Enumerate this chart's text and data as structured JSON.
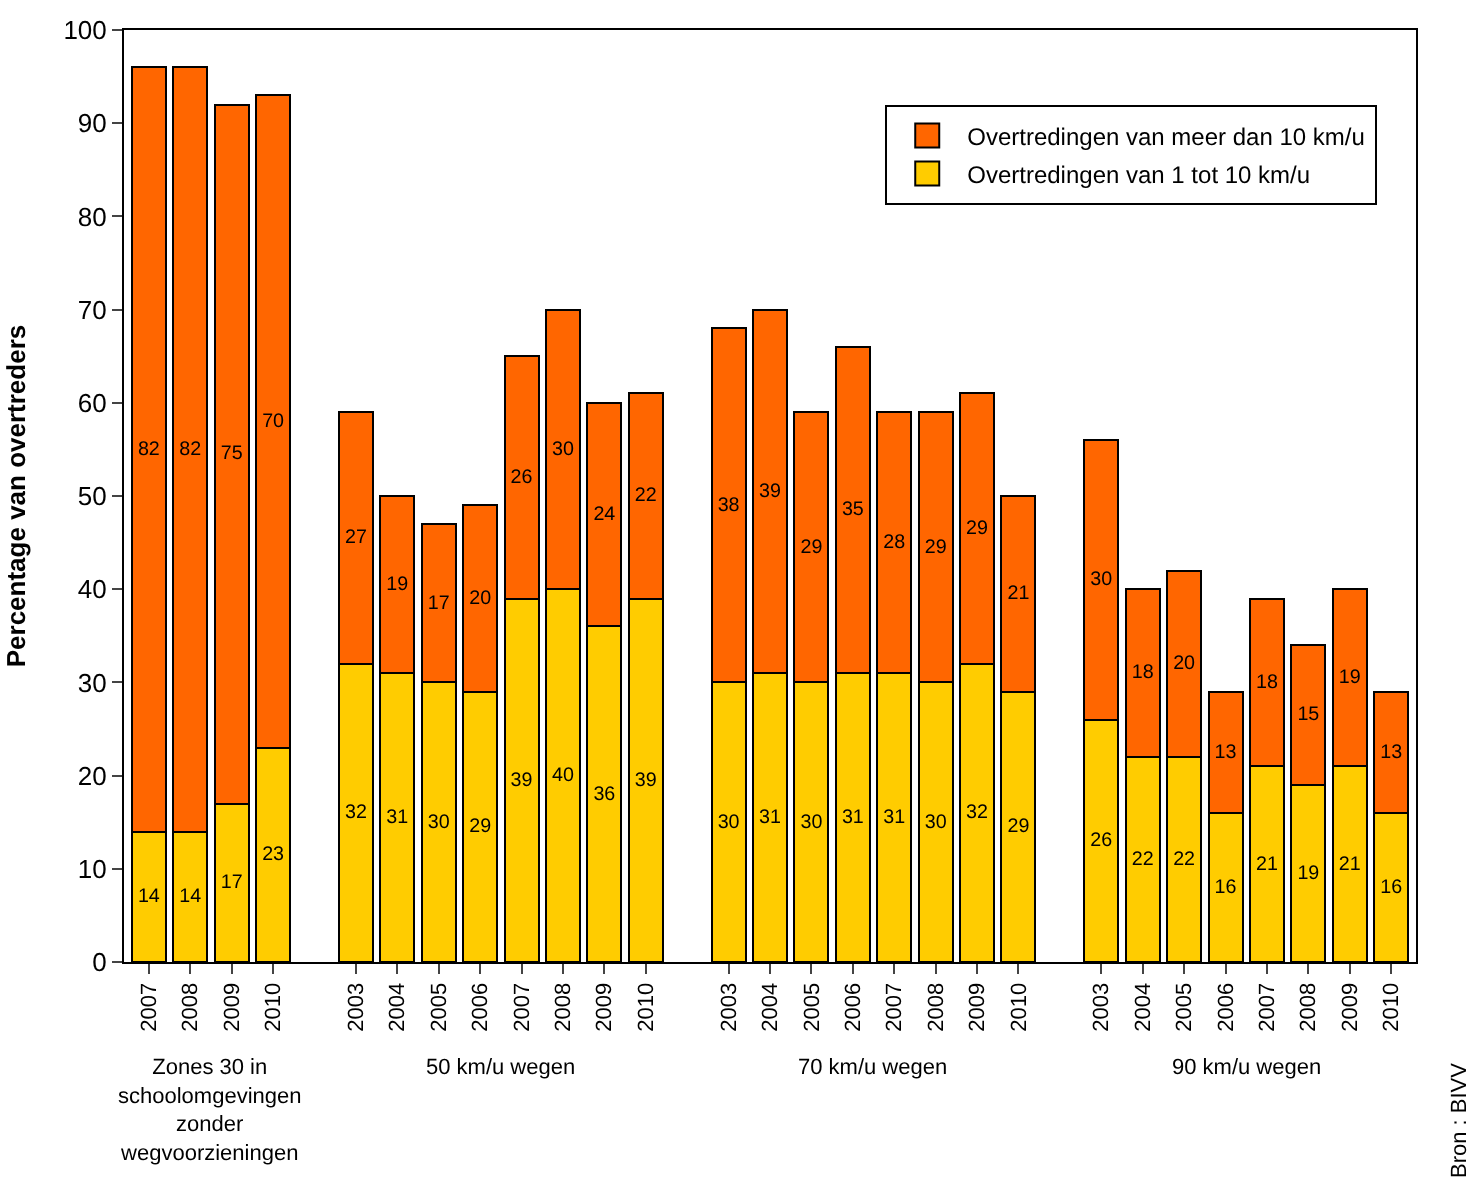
{
  "chart_data": {
    "type": "bar",
    "stacked": true,
    "ylabel": "Percentage van overtreders",
    "categories": [
      "2007",
      "2008",
      "2009",
      "2010",
      null,
      "2003",
      "2004",
      "2005",
      "2006",
      "2007",
      "2008",
      "2009",
      "2010",
      null,
      "2003",
      "2004",
      "2005",
      "2006",
      "2007",
      "2008",
      "2009",
      "2010",
      null,
      "2003",
      "2004",
      "2005",
      "2006",
      "2007",
      "2008",
      "2009",
      "2010"
    ],
    "series": [
      {
        "name": "Overtredingen van 1 tot 10 km/u",
        "color": "#ffcc00",
        "values": [
          14,
          14,
          17,
          23,
          null,
          32,
          31,
          30,
          29,
          39,
          40,
          36,
          39,
          null,
          30,
          31,
          30,
          31,
          31,
          30,
          32,
          29,
          null,
          26,
          22,
          22,
          16,
          21,
          19,
          21,
          16
        ]
      },
      {
        "name": "Overtredingen van meer dan 10 km/u",
        "color": "#ff6600",
        "values": [
          82,
          82,
          75,
          70,
          null,
          27,
          19,
          17,
          20,
          26,
          30,
          24,
          22,
          null,
          38,
          39,
          29,
          35,
          28,
          29,
          29,
          21,
          null,
          30,
          18,
          20,
          13,
          18,
          15,
          19,
          13
        ]
      }
    ],
    "data_labels": true,
    "ylim": [
      0,
      100
    ],
    "yticks": [
      0,
      10,
      20,
      30,
      40,
      50,
      60,
      70,
      80,
      90,
      100
    ],
    "grid": false,
    "legend": "top right",
    "annotations": [
      "Zones 30 in schoolomgevingen zonder wegvoorzieningen",
      "50 km/u wegen",
      "70 km/u wegen",
      "90 km/u wegen",
      "Bron : BIVV"
    ]
  }
}
